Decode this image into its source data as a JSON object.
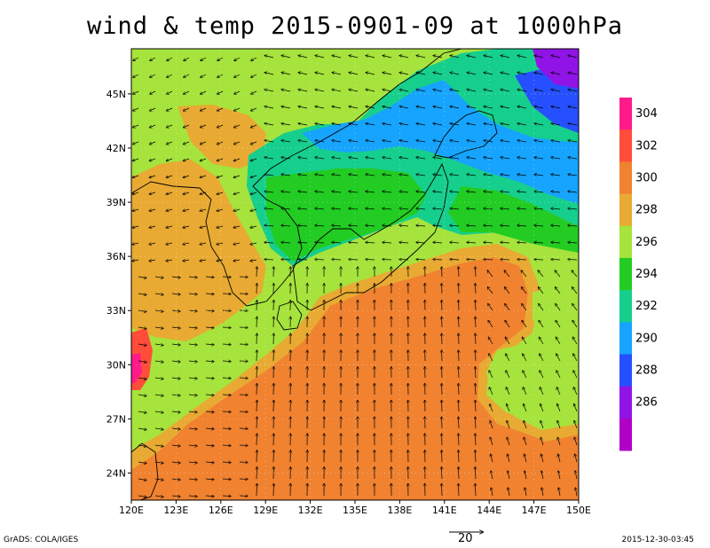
{
  "title": "wind & temp 2015-0901-09 at 1000hPa",
  "x_axis_labels": [
    "120E",
    "123E",
    "126E",
    "129E",
    "132E",
    "135E",
    "138E",
    "141E",
    "144E",
    "147E",
    "150E"
  ],
  "y_axis_labels": [
    "24N",
    "27N",
    "30N",
    "33N",
    "36N",
    "39N",
    "42N",
    "45N"
  ],
  "colorbar": {
    "labels": [
      "304",
      "302",
      "300",
      "298",
      "296",
      "294",
      "292",
      "290",
      "288",
      "286"
    ],
    "colors": [
      "#ff1a8c",
      "#ff4d3a",
      "#f08230",
      "#e8aa32",
      "#a6e33c",
      "#22cc22",
      "#16cf8c",
      "#16a4ff",
      "#2650ff",
      "#9014e6",
      "#b000c8"
    ]
  },
  "reference_vector": {
    "label": "20"
  },
  "footer": {
    "left": "GrADS: COLA/IGES",
    "right": "2015-12-30-03:45"
  },
  "chart_data": {
    "type": "map",
    "variables": [
      "wind vectors",
      "temperature (K)"
    ],
    "level": "1000hPa",
    "time": "2015-0901-09",
    "lon_range": [
      120,
      150
    ],
    "lat_range": [
      22.5,
      47.5
    ],
    "temperature_levels": [
      286,
      288,
      290,
      292,
      294,
      296,
      298,
      300,
      302,
      304
    ]
  }
}
